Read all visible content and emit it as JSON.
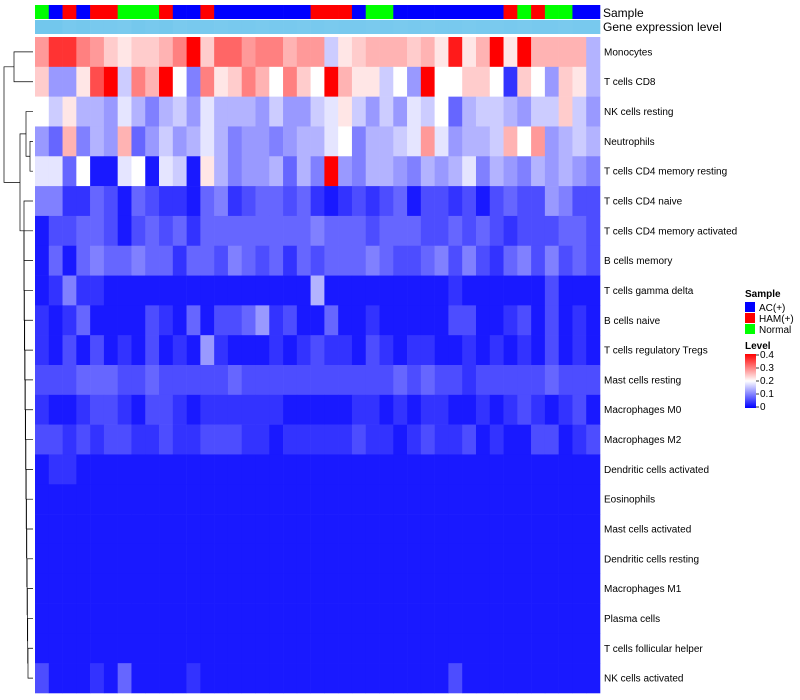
{
  "chart_data": {
    "type": "heatmap",
    "title": "",
    "annotation_tracks": [
      {
        "name": "Sample",
        "type": "categorical"
      },
      {
        "name": "Gene expression level",
        "type": "continuous"
      }
    ],
    "sample_groups": [
      {
        "label": "AC(+)",
        "color": "#0000ff"
      },
      {
        "label": "HAM(+)",
        "color": "#ff0000"
      },
      {
        "label": "Normal",
        "color": "#00ff00"
      }
    ],
    "sample_annotation": [
      "Normal",
      "AC(+)",
      "HAM(+)",
      "AC(+)",
      "HAM(+)",
      "HAM(+)",
      "Normal",
      "Normal",
      "Normal",
      "HAM(+)",
      "AC(+)",
      "AC(+)",
      "HAM(+)",
      "AC(+)",
      "AC(+)",
      "AC(+)",
      "AC(+)",
      "AC(+)",
      "AC(+)",
      "AC(+)",
      "HAM(+)",
      "HAM(+)",
      "HAM(+)",
      "AC(+)",
      "Normal",
      "Normal",
      "AC(+)",
      "AC(+)",
      "AC(+)",
      "AC(+)",
      "AC(+)",
      "AC(+)",
      "AC(+)",
      "AC(+)",
      "HAM(+)",
      "Normal",
      "HAM(+)",
      "Normal",
      "Normal",
      "AC(+)",
      "AC(+)"
    ],
    "expression_track": [
      0.95,
      0.95,
      0.9,
      0.92,
      0.9,
      0.9,
      0.88,
      0.92,
      0.9,
      0.92,
      0.88,
      0.9,
      0.9,
      0.88,
      0.9,
      0.9,
      0.88,
      0.9,
      0.9,
      0.88,
      0.9,
      0.88,
      0.9,
      0.9,
      0.88,
      0.9,
      0.88,
      0.9,
      0.88,
      0.9,
      0.9,
      0.88,
      0.9,
      0.88,
      0.9,
      0.88,
      0.9,
      0.9,
      0.88,
      0.9,
      0.9
    ],
    "rows": [
      "Monocytes",
      "T cells CD8",
      "NK cells resting",
      "Neutrophils",
      "T cells CD4 memory resting",
      "T cells CD4 naive",
      "T cells CD4 memory activated",
      "B cells memory",
      "T cells gamma delta",
      "B cells naive",
      "T cells regulatory  Tregs",
      "Mast cells resting",
      "Macrophages M0",
      "Macrophages M2",
      "Dendritic cells activated",
      "Eosinophils",
      "Mast cells activated",
      "Dendritic cells resting",
      "Macrophages M1",
      "Plasma cells",
      "T cells follicular helper",
      "NK cells activated"
    ],
    "values": [
      [
        0.28,
        0.36,
        0.36,
        0.3,
        0.28,
        0.24,
        0.22,
        0.24,
        0.24,
        0.26,
        0.3,
        0.4,
        0.24,
        0.32,
        0.32,
        0.28,
        0.3,
        0.3,
        0.26,
        0.28,
        0.28,
        0.16,
        0.22,
        0.24,
        0.26,
        0.26,
        0.26,
        0.24,
        0.26,
        0.22,
        0.38,
        0.22,
        0.26,
        0.4,
        0.22,
        0.4,
        0.26,
        0.26,
        0.26,
        0.26,
        0.14
      ],
      [
        0.24,
        0.12,
        0.12,
        0.22,
        0.34,
        0.4,
        0.16,
        0.3,
        0.26,
        0.4,
        0.2,
        0.1,
        0.3,
        0.22,
        0.24,
        0.3,
        0.26,
        0.2,
        0.3,
        0.24,
        0.2,
        0.4,
        0.26,
        0.22,
        0.22,
        0.16,
        0.2,
        0.12,
        0.4,
        0.2,
        0.2,
        0.24,
        0.24,
        0.2,
        0.04,
        0.24,
        0.2,
        0.12,
        0.24,
        0.22,
        0.14
      ],
      [
        0.2,
        0.16,
        0.22,
        0.14,
        0.14,
        0.12,
        0.18,
        0.14,
        0.1,
        0.14,
        0.16,
        0.12,
        0.18,
        0.14,
        0.14,
        0.14,
        0.12,
        0.16,
        0.12,
        0.12,
        0.16,
        0.18,
        0.22,
        0.16,
        0.12,
        0.16,
        0.12,
        0.18,
        0.16,
        0.2,
        0.08,
        0.14,
        0.16,
        0.16,
        0.14,
        0.12,
        0.16,
        0.16,
        0.24,
        0.16,
        0.12
      ],
      [
        0.12,
        0.08,
        0.26,
        0.1,
        0.14,
        0.12,
        0.26,
        0.08,
        0.12,
        0.16,
        0.12,
        0.14,
        0.18,
        0.14,
        0.1,
        0.12,
        0.12,
        0.1,
        0.12,
        0.14,
        0.14,
        0.18,
        0.2,
        0.1,
        0.14,
        0.14,
        0.16,
        0.18,
        0.28,
        0.18,
        0.12,
        0.14,
        0.14,
        0.16,
        0.26,
        0.2,
        0.28,
        0.12,
        0.14,
        0.16,
        0.14
      ],
      [
        0.18,
        0.18,
        0.08,
        0.2,
        0.02,
        0.02,
        0.18,
        0.2,
        0.02,
        0.18,
        0.16,
        0.02,
        0.22,
        0.14,
        0.1,
        0.12,
        0.12,
        0.14,
        0.08,
        0.14,
        0.1,
        0.4,
        0.12,
        0.1,
        0.14,
        0.14,
        0.12,
        0.1,
        0.14,
        0.12,
        0.14,
        0.18,
        0.1,
        0.14,
        0.12,
        0.1,
        0.14,
        0.12,
        0.14,
        0.12,
        0.1
      ],
      [
        0.1,
        0.1,
        0.04,
        0.04,
        0.08,
        0.06,
        0.02,
        0.08,
        0.06,
        0.04,
        0.04,
        0.02,
        0.08,
        0.1,
        0.04,
        0.06,
        0.08,
        0.08,
        0.06,
        0.08,
        0.04,
        0.02,
        0.04,
        0.06,
        0.04,
        0.06,
        0.08,
        0.02,
        0.06,
        0.06,
        0.04,
        0.06,
        0.02,
        0.06,
        0.08,
        0.06,
        0.06,
        0.12,
        0.1,
        0.06,
        0.06
      ],
      [
        0.02,
        0.06,
        0.06,
        0.08,
        0.08,
        0.06,
        0.02,
        0.06,
        0.08,
        0.06,
        0.08,
        0.04,
        0.08,
        0.08,
        0.08,
        0.08,
        0.08,
        0.08,
        0.08,
        0.08,
        0.1,
        0.08,
        0.08,
        0.08,
        0.06,
        0.08,
        0.08,
        0.08,
        0.06,
        0.06,
        0.08,
        0.06,
        0.08,
        0.06,
        0.04,
        0.06,
        0.06,
        0.06,
        0.08,
        0.08,
        0.06
      ],
      [
        0.02,
        0.08,
        0.02,
        0.08,
        0.1,
        0.08,
        0.08,
        0.1,
        0.08,
        0.08,
        0.04,
        0.08,
        0.08,
        0.06,
        0.1,
        0.08,
        0.06,
        0.08,
        0.04,
        0.08,
        0.06,
        0.08,
        0.08,
        0.08,
        0.1,
        0.08,
        0.06,
        0.06,
        0.08,
        0.1,
        0.06,
        0.1,
        0.06,
        0.04,
        0.08,
        0.1,
        0.06,
        0.1,
        0.06,
        0.08,
        0.06
      ],
      [
        0.02,
        0.04,
        0.1,
        0.04,
        0.04,
        0.02,
        0.02,
        0.02,
        0.02,
        0.02,
        0.02,
        0.02,
        0.02,
        0.02,
        0.02,
        0.02,
        0.02,
        0.02,
        0.02,
        0.02,
        0.14,
        0.02,
        0.02,
        0.02,
        0.02,
        0.02,
        0.02,
        0.02,
        0.02,
        0.02,
        0.04,
        0.02,
        0.02,
        0.02,
        0.02,
        0.02,
        0.02,
        0.06,
        0.02,
        0.02,
        0.02
      ],
      [
        0.04,
        0.02,
        0.04,
        0.08,
        0.02,
        0.02,
        0.02,
        0.02,
        0.06,
        0.04,
        0.02,
        0.08,
        0.02,
        0.06,
        0.06,
        0.08,
        0.12,
        0.04,
        0.06,
        0.02,
        0.02,
        0.08,
        0.02,
        0.02,
        0.04,
        0.02,
        0.02,
        0.02,
        0.02,
        0.02,
        0.06,
        0.06,
        0.02,
        0.02,
        0.04,
        0.06,
        0.02,
        0.06,
        0.02,
        0.04,
        0.02
      ],
      [
        0.04,
        0.02,
        0.06,
        0.02,
        0.06,
        0.02,
        0.04,
        0.02,
        0.06,
        0.02,
        0.04,
        0.02,
        0.12,
        0.04,
        0.02,
        0.02,
        0.02,
        0.04,
        0.02,
        0.04,
        0.06,
        0.04,
        0.04,
        0.02,
        0.06,
        0.04,
        0.02,
        0.04,
        0.04,
        0.02,
        0.02,
        0.04,
        0.02,
        0.04,
        0.02,
        0.04,
        0.02,
        0.06,
        0.02,
        0.04,
        0.02
      ],
      [
        0.06,
        0.06,
        0.06,
        0.08,
        0.08,
        0.08,
        0.06,
        0.06,
        0.08,
        0.06,
        0.06,
        0.06,
        0.06,
        0.06,
        0.08,
        0.06,
        0.06,
        0.06,
        0.06,
        0.06,
        0.06,
        0.06,
        0.06,
        0.06,
        0.06,
        0.06,
        0.08,
        0.06,
        0.08,
        0.06,
        0.06,
        0.04,
        0.06,
        0.06,
        0.06,
        0.06,
        0.06,
        0.08,
        0.06,
        0.06,
        0.06
      ],
      [
        0.04,
        0.02,
        0.02,
        0.04,
        0.06,
        0.06,
        0.04,
        0.02,
        0.06,
        0.06,
        0.04,
        0.02,
        0.04,
        0.04,
        0.04,
        0.04,
        0.04,
        0.04,
        0.02,
        0.02,
        0.02,
        0.02,
        0.02,
        0.04,
        0.04,
        0.02,
        0.04,
        0.02,
        0.04,
        0.04,
        0.02,
        0.02,
        0.04,
        0.02,
        0.04,
        0.06,
        0.04,
        0.02,
        0.04,
        0.06,
        0.02
      ],
      [
        0.06,
        0.06,
        0.04,
        0.06,
        0.04,
        0.06,
        0.06,
        0.04,
        0.04,
        0.06,
        0.04,
        0.04,
        0.06,
        0.06,
        0.06,
        0.04,
        0.04,
        0.02,
        0.04,
        0.04,
        0.04,
        0.04,
        0.04,
        0.06,
        0.04,
        0.04,
        0.02,
        0.04,
        0.06,
        0.04,
        0.04,
        0.06,
        0.02,
        0.04,
        0.02,
        0.02,
        0.06,
        0.06,
        0.02,
        0.04,
        0.06
      ],
      [
        0.02,
        0.04,
        0.04,
        0.02,
        0.02,
        0.02,
        0.02,
        0.02,
        0.02,
        0.02,
        0.02,
        0.02,
        0.02,
        0.02,
        0.02,
        0.02,
        0.02,
        0.02,
        0.02,
        0.02,
        0.02,
        0.02,
        0.02,
        0.02,
        0.02,
        0.02,
        0.02,
        0.02,
        0.02,
        0.02,
        0.02,
        0.02,
        0.02,
        0.02,
        0.02,
        0.02,
        0.02,
        0.02,
        0.02,
        0.02,
        0.02
      ],
      [
        0.02,
        0.02,
        0.02,
        0.02,
        0.02,
        0.02,
        0.02,
        0.02,
        0.02,
        0.02,
        0.02,
        0.02,
        0.02,
        0.02,
        0.02,
        0.02,
        0.02,
        0.02,
        0.02,
        0.02,
        0.02,
        0.02,
        0.02,
        0.02,
        0.02,
        0.02,
        0.02,
        0.02,
        0.02,
        0.02,
        0.02,
        0.02,
        0.02,
        0.02,
        0.02,
        0.02,
        0.02,
        0.02,
        0.02,
        0.02,
        0.02
      ],
      [
        0.02,
        0.02,
        0.02,
        0.02,
        0.02,
        0.02,
        0.02,
        0.02,
        0.02,
        0.02,
        0.02,
        0.02,
        0.02,
        0.02,
        0.02,
        0.02,
        0.02,
        0.02,
        0.02,
        0.02,
        0.02,
        0.02,
        0.02,
        0.02,
        0.02,
        0.02,
        0.02,
        0.02,
        0.02,
        0.02,
        0.02,
        0.02,
        0.02,
        0.02,
        0.02,
        0.02,
        0.02,
        0.02,
        0.02,
        0.02,
        0.02
      ],
      [
        0.02,
        0.02,
        0.02,
        0.02,
        0.02,
        0.02,
        0.02,
        0.02,
        0.02,
        0.02,
        0.02,
        0.02,
        0.02,
        0.02,
        0.02,
        0.02,
        0.02,
        0.02,
        0.02,
        0.02,
        0.02,
        0.02,
        0.02,
        0.02,
        0.02,
        0.02,
        0.02,
        0.02,
        0.02,
        0.02,
        0.02,
        0.02,
        0.02,
        0.02,
        0.02,
        0.02,
        0.02,
        0.02,
        0.02,
        0.02,
        0.02
      ],
      [
        0.02,
        0.02,
        0.02,
        0.02,
        0.02,
        0.02,
        0.02,
        0.02,
        0.02,
        0.02,
        0.02,
        0.02,
        0.02,
        0.02,
        0.02,
        0.02,
        0.02,
        0.02,
        0.02,
        0.02,
        0.02,
        0.02,
        0.02,
        0.02,
        0.02,
        0.02,
        0.02,
        0.02,
        0.02,
        0.02,
        0.02,
        0.02,
        0.02,
        0.02,
        0.02,
        0.02,
        0.02,
        0.02,
        0.02,
        0.02,
        0.02
      ],
      [
        0.02,
        0.02,
        0.02,
        0.02,
        0.02,
        0.02,
        0.02,
        0.02,
        0.02,
        0.02,
        0.02,
        0.02,
        0.02,
        0.02,
        0.02,
        0.02,
        0.02,
        0.02,
        0.02,
        0.02,
        0.02,
        0.02,
        0.02,
        0.02,
        0.02,
        0.02,
        0.02,
        0.02,
        0.02,
        0.02,
        0.02,
        0.02,
        0.02,
        0.02,
        0.02,
        0.02,
        0.02,
        0.02,
        0.02,
        0.02,
        0.02
      ],
      [
        0.02,
        0.02,
        0.02,
        0.02,
        0.02,
        0.02,
        0.02,
        0.02,
        0.02,
        0.02,
        0.02,
        0.02,
        0.02,
        0.02,
        0.02,
        0.02,
        0.02,
        0.02,
        0.02,
        0.02,
        0.02,
        0.02,
        0.02,
        0.02,
        0.02,
        0.02,
        0.02,
        0.02,
        0.02,
        0.02,
        0.02,
        0.02,
        0.02,
        0.02,
        0.02,
        0.02,
        0.02,
        0.02,
        0.02,
        0.02,
        0.02
      ],
      [
        0.06,
        0.02,
        0.02,
        0.02,
        0.04,
        0.02,
        0.08,
        0.02,
        0.02,
        0.02,
        0.02,
        0.04,
        0.02,
        0.02,
        0.02,
        0.02,
        0.02,
        0.02,
        0.02,
        0.02,
        0.02,
        0.02,
        0.02,
        0.02,
        0.02,
        0.02,
        0.02,
        0.02,
        0.02,
        0.02,
        0.06,
        0.02,
        0.02,
        0.02,
        0.02,
        0.02,
        0.02,
        0.02,
        0.02,
        0.02,
        0.02
      ]
    ],
    "colorscale": {
      "min": 0,
      "max": 0.4,
      "low_color": "#0000ff",
      "mid_color": "#ffffff",
      "high_color": "#ff0000"
    },
    "legend": {
      "sample_title": "Sample",
      "level_title": "Level",
      "level_ticks": [
        "0.4",
        "0.3",
        "0.2",
        "0.1",
        "0"
      ],
      "placement": "right"
    },
    "dendrogram": "rows, left side"
  }
}
